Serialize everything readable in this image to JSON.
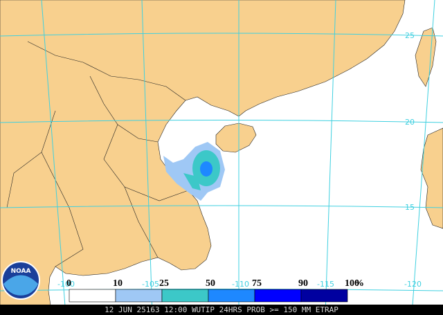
{
  "map": {
    "grid_labels": {
      "lat": [
        "25",
        "20",
        "15"
      ],
      "lon": [
        "-100",
        "-105",
        "-110",
        "-115",
        "-120"
      ]
    },
    "legend": {
      "values": [
        "0",
        "10",
        "25",
        "50",
        "75",
        "90",
        "100"
      ],
      "unit": "%",
      "colors": [
        "#ffffff",
        "#9fc8f5",
        "#3cc8c8",
        "#1e88ff",
        "#0000ff",
        "#0000a0"
      ]
    },
    "footer": "12 JUN 25163 12:00 WUTIP 24HRS PROB >= 150 MM ETRAP",
    "logo": "NOAA"
  }
}
